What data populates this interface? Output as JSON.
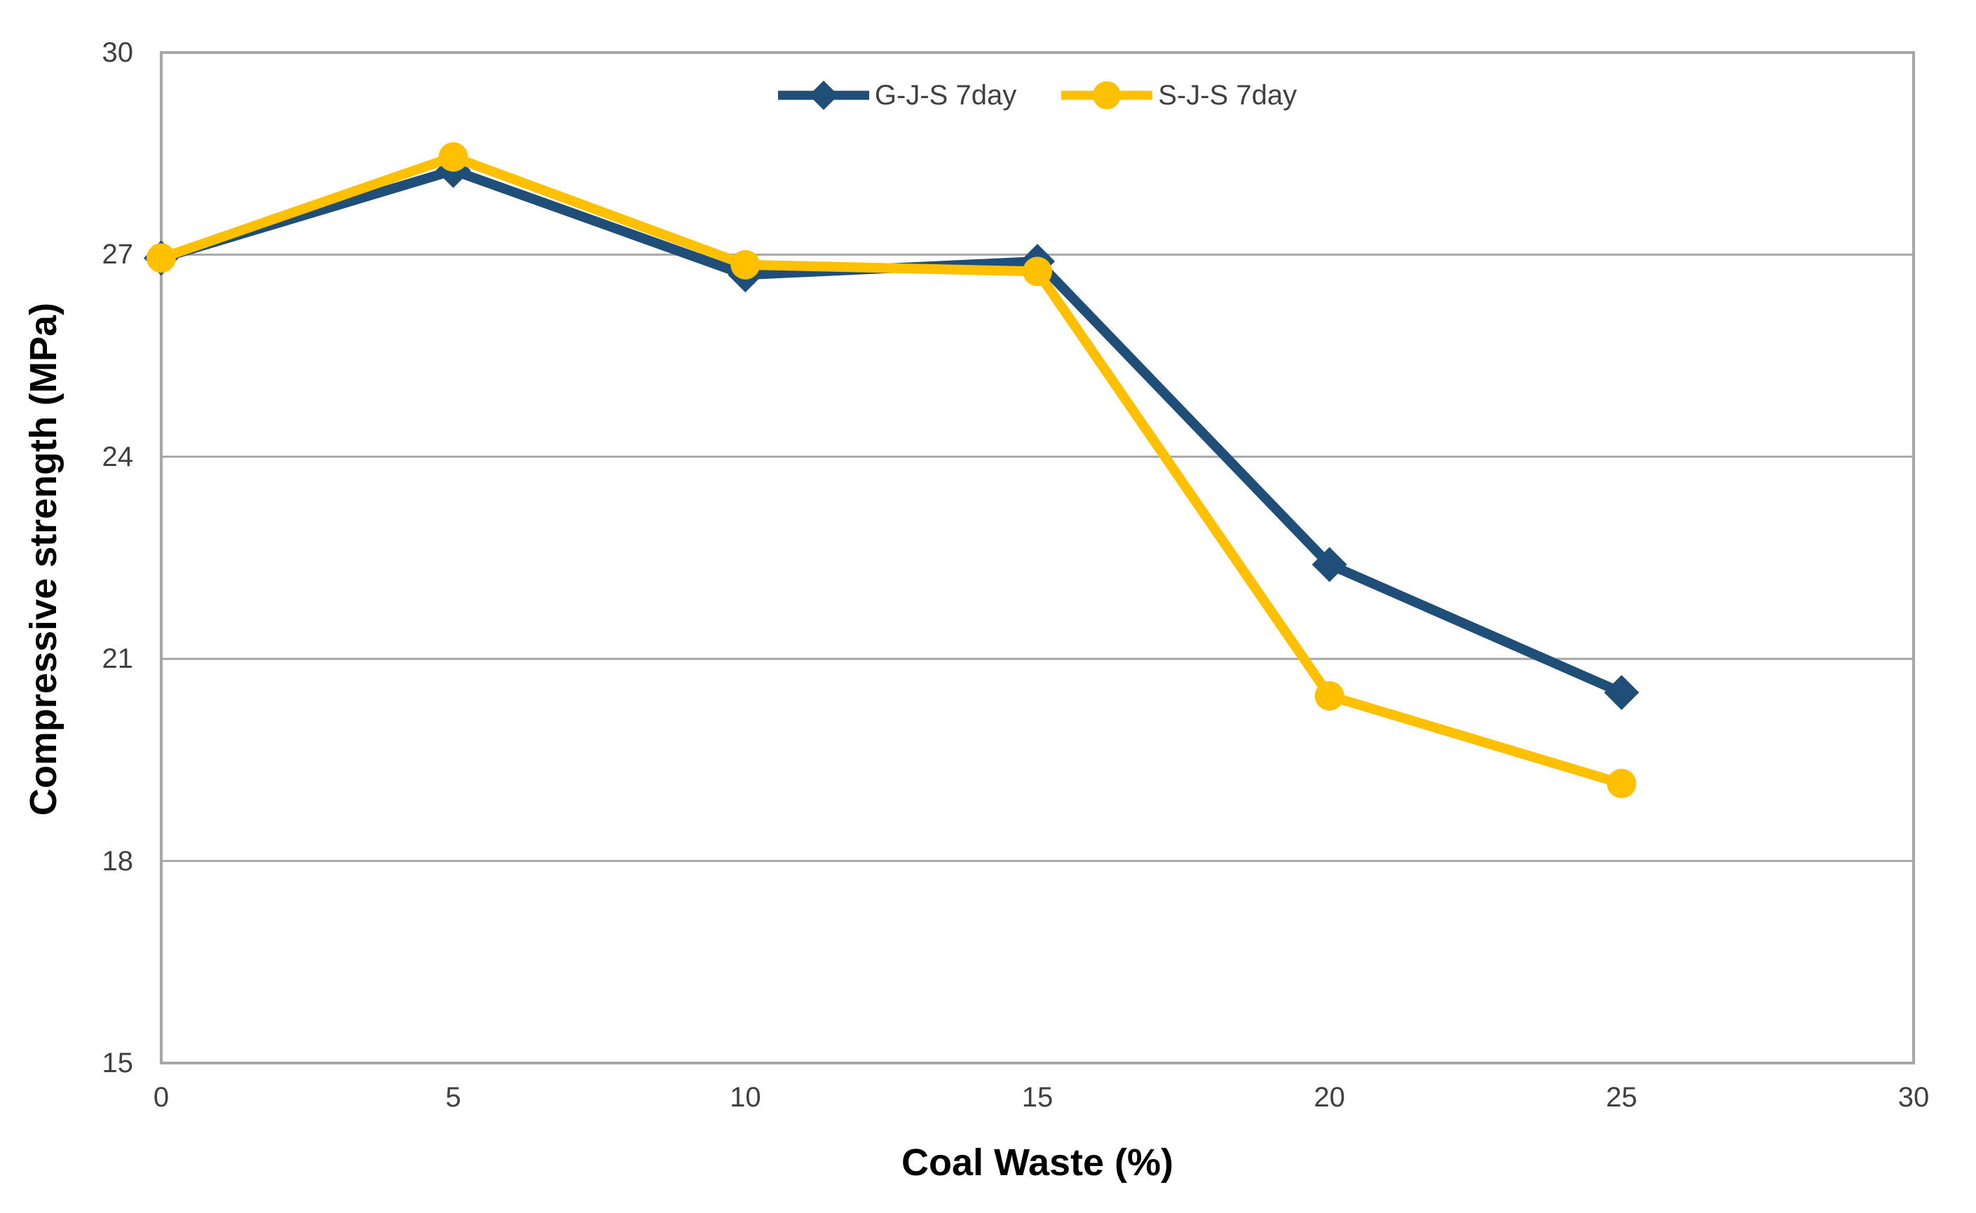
{
  "chart_data": {
    "type": "line",
    "title": "",
    "xlabel": "Coal Waste (%)",
    "ylabel": "Compressive strength (MPa)",
    "x": [
      0,
      5,
      10,
      15,
      20,
      25
    ],
    "series": [
      {
        "name": "G-J-S 7day",
        "color": "#1F4E79",
        "marker": "diamond",
        "values": [
          26.95,
          28.25,
          26.7,
          26.9,
          22.4,
          20.5
        ]
      },
      {
        "name": "S-J-S 7day",
        "color": "#FFC000",
        "marker": "circle",
        "values": [
          26.95,
          28.45,
          26.85,
          26.75,
          20.45,
          19.15
        ]
      }
    ],
    "xlim": [
      0,
      30
    ],
    "ylim": [
      15,
      30
    ],
    "xticks": [
      0,
      5,
      10,
      15,
      20,
      25,
      30
    ],
    "yticks": [
      15,
      18,
      21,
      24,
      27,
      30
    ],
    "grid": "horizontal",
    "legend_position": "top-center",
    "colors": {
      "gridline": "#A6A6A6",
      "plot_border": "#A6A6A6",
      "tick_text": "#404040",
      "title_text": "#000000",
      "background": "#FFFFFF"
    }
  }
}
